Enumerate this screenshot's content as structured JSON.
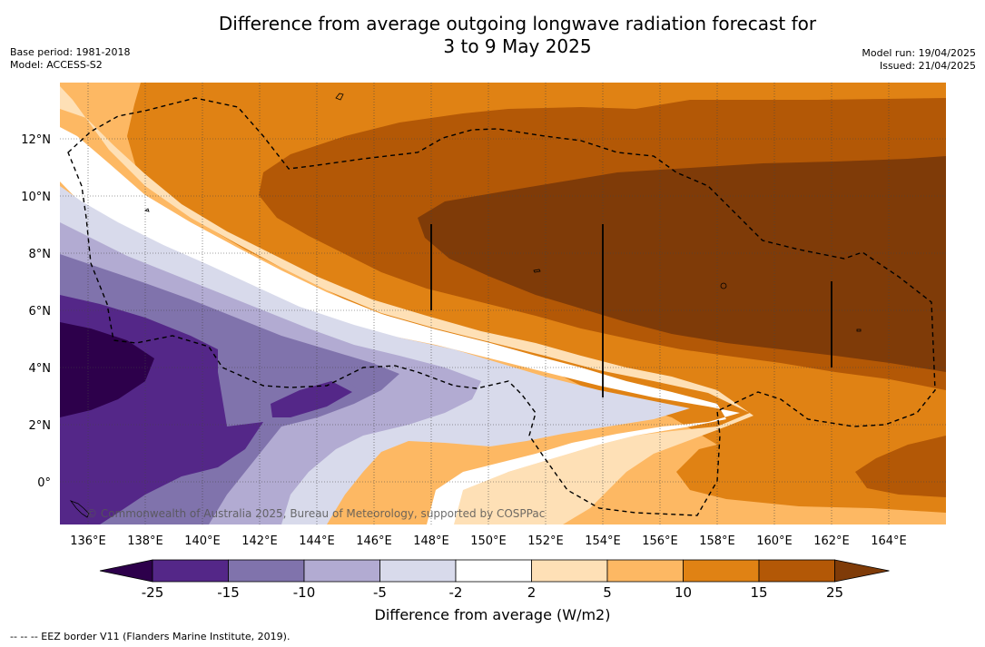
{
  "title_line1": "Difference from average outgoing longwave radiation forecast for",
  "title_line2": "3 to 9 May 2025",
  "base_period": "Base period: 1981-2018",
  "model": "Model: ACCESS-S2",
  "model_run": "Model run: 19/04/2025",
  "issued": "Issued: 21/04/2025",
  "watermark": "© Commonwealth of Australia 2025, Bureau of Meteorology, supported by COSPPac",
  "colorbar_label": "Difference from average (W/m2)",
  "footnote": "--  --  -- EEZ border V11 (Flanders Marine Institute, 2019).",
  "x_ticks": [
    "136°E",
    "138°E",
    "140°E",
    "142°E",
    "144°E",
    "146°E",
    "148°E",
    "150°E",
    "152°E",
    "154°E",
    "156°E",
    "158°E",
    "160°E",
    "162°E",
    "164°E"
  ],
  "y_ticks": [
    "12°N",
    "10°N",
    "8°N",
    "6°N",
    "4°N",
    "2°N",
    "0°"
  ],
  "colorbar": {
    "ticks": [
      "-25",
      "-15",
      "-10",
      "-5",
      "-2",
      "2",
      "5",
      "10",
      "15",
      "25"
    ],
    "colors": [
      "#2d004b",
      "#542788",
      "#8073ac",
      "#b2abd2",
      "#d8daeb",
      "#ffffff",
      "#fee0b6",
      "#fdb863",
      "#e08214",
      "#b35806",
      "#7f3b08"
    ]
  }
}
